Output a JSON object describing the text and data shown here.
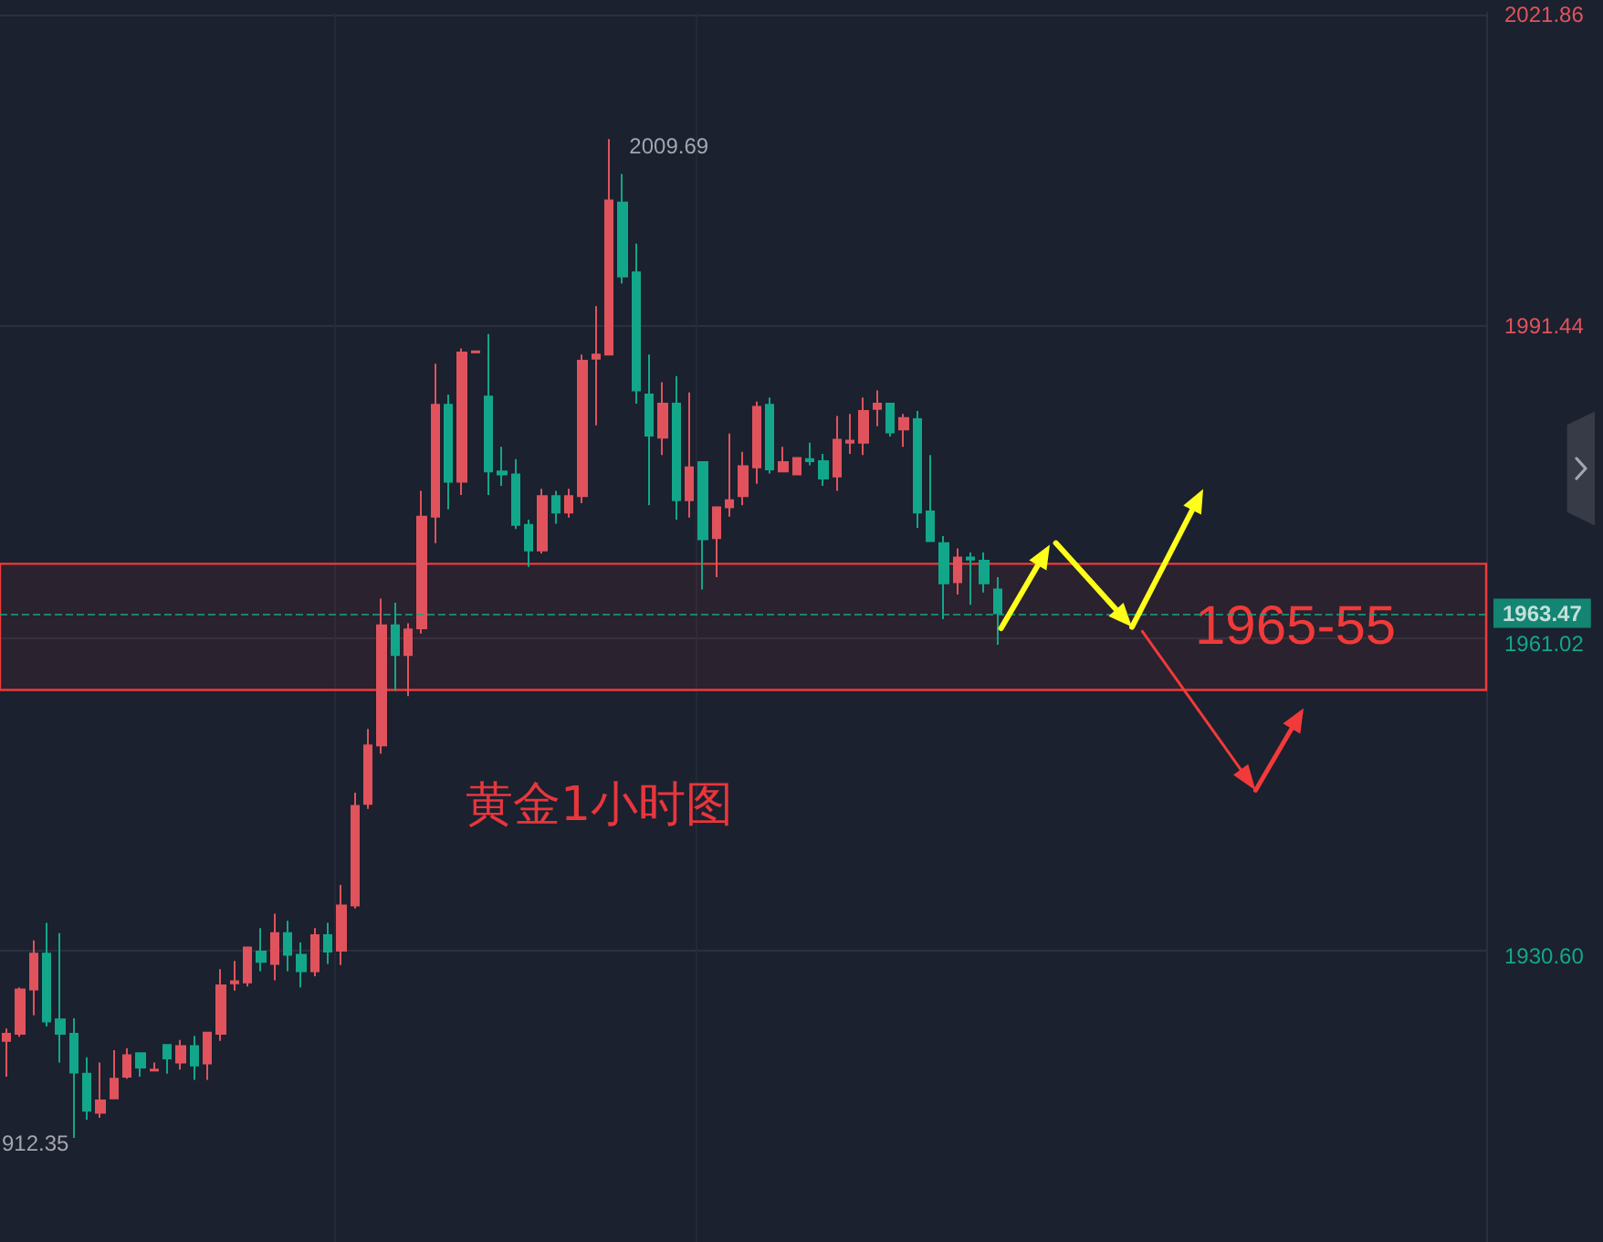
{
  "chart_data": {
    "type": "candlestick",
    "title": "黄金1小时图",
    "categories": [
      null,
      null,
      null,
      null,
      null,
      null,
      null,
      null,
      null,
      null,
      null,
      null,
      null,
      null,
      null,
      null,
      null,
      null,
      null,
      null,
      null,
      null,
      null,
      null,
      null,
      null,
      null,
      null,
      null,
      null,
      null,
      null,
      null,
      null,
      null,
      null,
      null,
      null,
      null,
      null,
      null,
      null,
      null,
      null,
      null,
      null,
      null,
      null,
      null,
      null,
      null,
      null,
      null,
      null,
      null,
      null,
      null,
      null,
      null,
      null,
      null,
      null,
      null,
      null,
      null,
      null,
      null,
      null,
      null,
      null,
      null,
      null,
      null,
      null,
      null,
      null,
      null,
      null,
      null,
      null,
      null,
      null,
      null,
      null,
      null,
      null,
      null,
      null,
      null,
      null,
      null,
      null,
      null,
      null,
      null,
      null,
      null,
      null,
      null,
      null,
      null,
      null,
      null,
      null,
      null,
      null,
      null,
      null,
      null,
      null,
      null
    ],
    "ohlc": [
      [
        1921.8,
        1923.0,
        1918.3,
        1922.5
      ],
      [
        1922.5,
        1927.0,
        1922.2,
        1926.8
      ],
      [
        1926.8,
        1931.6,
        1924.3,
        1930.3
      ],
      [
        1930.3,
        1933.3,
        1923.2,
        1923.7
      ],
      [
        1923.9,
        1932.3,
        1919.7,
        1922.5
      ],
      [
        1922.5,
        1924.0,
        1912.35,
        1918.7
      ],
      [
        1918.6,
        1920.2,
        1914.1,
        1915.0
      ],
      [
        1914.8,
        1919.7,
        1914.3,
        1916.0
      ],
      [
        1916.2,
        1920.9,
        1916.2,
        1918.1
      ],
      [
        1918.3,
        1921.1,
        1918.1,
        1920.4
      ],
      [
        1920.6,
        1920.6,
        1918.3,
        1919.2
      ],
      [
        1918.9,
        1919.7,
        1918.9,
        1919.0
      ],
      [
        1921.4,
        1921.5,
        1918.6,
        1920.1
      ],
      [
        1919.7,
        1921.9,
        1919.0,
        1921.3
      ],
      [
        1921.3,
        1922.3,
        1918.0,
        1919.4
      ],
      [
        1919.6,
        1922.6,
        1918.0,
        1922.6
      ],
      [
        1922.5,
        1928.8,
        1921.8,
        1927.2
      ],
      [
        1927.4,
        1929.6,
        1926.7,
        1927.6
      ],
      [
        1927.5,
        1930.9,
        1927.1,
        1930.9
      ],
      [
        1930.5,
        1932.8,
        1928.6,
        1929.5
      ],
      [
        1929.3,
        1934.2,
        1927.7,
        1932.3
      ],
      [
        1932.3,
        1933.5,
        1928.6,
        1930.2
      ],
      [
        1930.2,
        1931.4,
        1927.0,
        1928.6
      ],
      [
        1928.6,
        1932.8,
        1928.1,
        1932.1
      ],
      [
        1932.1,
        1933.3,
        1929.3,
        1930.5
      ],
      [
        1930.6,
        1937.0,
        1929.2,
        1935.0
      ],
      [
        1935.0,
        1946.0,
        1934.7,
        1944.7
      ],
      [
        1944.9,
        1952.2,
        1944.4,
        1950.6
      ],
      [
        1950.6,
        1964.9,
        1949.8,
        1962.3
      ],
      [
        1962.3,
        1964.5,
        1955.9,
        1959.4
      ],
      [
        1959.4,
        1962.5,
        1955.4,
        1961.9
      ],
      [
        1962.0,
        1975.4,
        1961.5,
        1972.9
      ],
      [
        1972.9,
        1987.8,
        1970.3,
        1983.8
      ],
      [
        1983.8,
        1984.8,
        1973.6,
        1976.3
      ],
      [
        1976.3,
        1989.3,
        1975.0,
        1988.9
      ],
      [
        1988.9,
        1989.0,
        1988.9,
        1989.0
      ],
      [
        1984.6,
        1990.7,
        1975.0,
        1977.3
      ],
      [
        1977.3,
        1979.7,
        1975.9,
        1977.0
      ],
      [
        1977.0,
        1978.5,
        1971.7,
        1972.1
      ],
      [
        1972.1,
        1972.6,
        1968.0,
        1969.6
      ],
      [
        1969.6,
        1975.6,
        1969.3,
        1974.9
      ],
      [
        1974.9,
        1975.4,
        1972.2,
        1973.3
      ],
      [
        1973.3,
        1975.6,
        1972.8,
        1974.9
      ],
      [
        1974.9,
        1988.7,
        1974.2,
        1988.1
      ],
      [
        1988.3,
        1993.4,
        1981.8,
        1988.7
      ],
      [
        1988.7,
        2009.69,
        1988.6,
        2003.7
      ],
      [
        2003.5,
        2006.3,
        1995.6,
        1996.3
      ],
      [
        1996.7,
        1999.5,
        1983.9,
        1985.2
      ],
      [
        1984.8,
        1988.7,
        1974.0,
        1980.8
      ],
      [
        1980.6,
        1986.0,
        1978.9,
        1983.9
      ],
      [
        1983.9,
        1986.6,
        1972.6,
        1974.5
      ],
      [
        1974.5,
        1985.0,
        1972.8,
        1977.7
      ],
      [
        1978.2,
        1978.2,
        1965.8,
        1970.7
      ],
      [
        1970.8,
        1973.8,
        1967.0,
        1973.8
      ],
      [
        1973.8,
        1981.0,
        1972.9,
        1974.5
      ],
      [
        1974.9,
        1979.2,
        1974.0,
        1977.8
      ],
      [
        1977.7,
        1984.1,
        1976.1,
        1983.6
      ],
      [
        1983.8,
        1984.5,
        1977.1,
        1977.5
      ],
      [
        1977.3,
        1979.7,
        1977.3,
        1978.2
      ],
      [
        1977.0,
        1978.6,
        1977.0,
        1978.6
      ],
      [
        1978.5,
        1980.1,
        1977.9,
        1978.3
      ],
      [
        1978.3,
        1979.0,
        1975.9,
        1976.6
      ],
      [
        1976.8,
        1982.7,
        1975.4,
        1980.4
      ],
      [
        1980.1,
        1982.9,
        1979.0,
        1980.3
      ],
      [
        1980.1,
        1984.5,
        1978.9,
        1983.2
      ],
      [
        1983.4,
        1985.2,
        1981.7,
        1983.9
      ],
      [
        1983.9,
        1983.9,
        1980.7,
        1981.1
      ],
      [
        1981.4,
        1982.9,
        1979.7,
        1982.5
      ],
      [
        1982.4,
        1983.2,
        1971.8,
        1973.3
      ],
      [
        1973.4,
        1978.9,
        1970.5,
        1970.5
      ],
      [
        1970.3,
        1971.0,
        1962.9,
        1966.4
      ],
      [
        1966.5,
        1969.8,
        1965.3,
        1968.9
      ],
      [
        1968.9,
        1969.4,
        1964.3,
        1968.7
      ],
      [
        1968.6,
        1969.4,
        1965.5,
        1966.4
      ],
      [
        1965.8,
        1967.0,
        1960.4,
        1963.47
      ],
      null,
      null,
      null,
      null,
      null,
      null,
      null,
      null,
      null,
      null,
      null,
      null,
      null,
      null,
      null,
      null,
      null,
      null,
      null,
      null,
      null,
      null,
      null,
      null,
      null,
      null,
      null,
      null,
      null,
      null,
      null,
      null,
      null,
      null,
      null,
      null
    ],
    "colors": [
      "#e0535d",
      "#e0535d",
      "#e0535d",
      "#12a78a",
      "#12a78a",
      "#12a78a",
      "#12a78a",
      "#e0535d",
      "#e0535d",
      "#e0535d",
      "#12a78a",
      "#e0535d",
      "#12a78a",
      "#e0535d",
      "#12a78a",
      "#e0535d",
      "#e0535d",
      "#e0535d",
      "#e0535d",
      "#12a78a",
      "#e0535d",
      "#12a78a",
      "#12a78a",
      "#e0535d",
      "#12a78a",
      "#e0535d",
      "#e0535d",
      "#e0535d",
      "#e0535d",
      "#12a78a",
      "#e0535d",
      "#e0535d",
      "#e0535d",
      "#12a78a",
      "#e0535d",
      "#e0535d",
      "#12a78a",
      "#12a78a",
      "#12a78a",
      "#12a78a",
      "#e0535d",
      "#12a78a",
      "#e0535d",
      "#e0535d",
      "#e0535d",
      "#e0535d",
      "#12a78a",
      "#12a78a",
      "#12a78a",
      "#e0535d",
      "#12a78a",
      "#e0535d",
      "#12a78a",
      "#e0535d",
      "#e0535d",
      "#e0535d",
      "#e0535d",
      "#12a78a",
      "#e0535d",
      "#e0535d",
      "#12a78a",
      "#12a78a",
      "#e0535d",
      "#e0535d",
      "#e0535d",
      "#e0535d",
      "#12a78a",
      "#e0535d",
      "#12a78a",
      "#12a78a",
      "#12a78a",
      "#e0535d",
      "#12a78a",
      "#12a78a",
      "#12a78a",
      null,
      null,
      null,
      null,
      null,
      null,
      null,
      null,
      null,
      null,
      null,
      null,
      null,
      null,
      null,
      null,
      null,
      null,
      null,
      null,
      null,
      null,
      null,
      null,
      null,
      null,
      null,
      null,
      null,
      null,
      null,
      null,
      null,
      null,
      null,
      null
    ],
    "ylim": [
      1902.2,
      2022.0
    ],
    "yticks": [
      {
        "value": 1930.6,
        "label": "1930.60"
      },
      1961.02,
      1991.44,
      2021.86
    ],
    "grid": "y",
    "tick_labels": "y",
    "ref_lines": [
      {
        "axis": "y",
        "value": 1963.47,
        "label": "1963.47",
        "color": "#12a78a",
        "line_style": "dashed"
      }
    ],
    "bands": [
      {
        "axis": "y",
        "from": 1956,
        "to": 1968.3,
        "label": "1965-55",
        "color": "#f03a3a"
      }
    ],
    "annotations": [
      "2009.69",
      "912.35"
    ]
  }
}
